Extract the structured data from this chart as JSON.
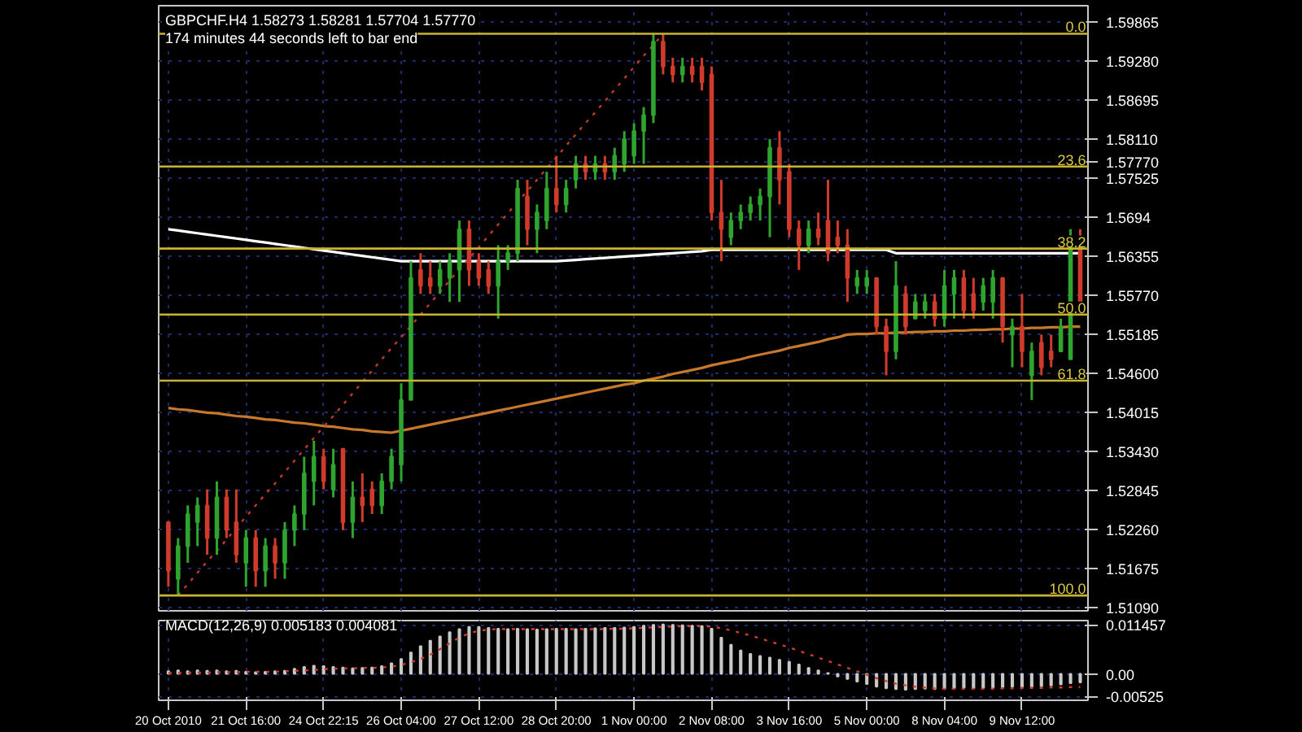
{
  "chart_data": [
    {
      "type": "candlestick",
      "title": "GBPCHF.H4  1.58273 1.58281 1.57704 1.57770",
      "subtitle": "174 minutes 44 seconds left to bar end",
      "categories": [
        null,
        null,
        null,
        null,
        null,
        null,
        null,
        null,
        null,
        null,
        null,
        null,
        null,
        null,
        null,
        null,
        null,
        null,
        null,
        null,
        null,
        null,
        null,
        null,
        null,
        null,
        null,
        null,
        null,
        null,
        null,
        null,
        null,
        null,
        null,
        null,
        null,
        null,
        null,
        null,
        null,
        null,
        null,
        null,
        null,
        null,
        null,
        null,
        null,
        null,
        null,
        null,
        null,
        null,
        null,
        null,
        null,
        null,
        null,
        null,
        null,
        null,
        null,
        null,
        null,
        null,
        null,
        null,
        null,
        null,
        null,
        null,
        null,
        null,
        null,
        null,
        null,
        null,
        null,
        null,
        null,
        null,
        null,
        null,
        null,
        null,
        null,
        null,
        null,
        null,
        null,
        null,
        null,
        null,
        null
      ],
      "ohlc": [
        [
          1.5237,
          1.5237,
          1.514,
          1.5164
        ],
        [
          1.5152,
          1.5213,
          1.5127,
          1.5201
        ],
        [
          1.5201,
          1.5262,
          1.5176,
          1.5249
        ],
        [
          1.5237,
          1.5274,
          1.5201,
          1.5262
        ],
        [
          1.5262,
          1.5286,
          1.5188,
          1.5213
        ],
        [
          1.5213,
          1.5298,
          1.5188,
          1.5274
        ],
        [
          1.5274,
          1.5286,
          1.5213,
          1.5225
        ],
        [
          1.5237,
          1.5286,
          1.5176,
          1.5188
        ],
        [
          1.5176,
          1.5225,
          1.514,
          1.5213
        ],
        [
          1.5213,
          1.5225,
          1.514,
          1.5164
        ],
        [
          1.5164,
          1.5213,
          1.514,
          1.5201
        ],
        [
          1.5201,
          1.5213,
          1.5152,
          1.5176
        ],
        [
          1.5176,
          1.5237,
          1.5152,
          1.5225
        ],
        [
          1.5225,
          1.5262,
          1.5201,
          1.5249
        ],
        [
          1.5249,
          1.5335,
          1.5225,
          1.531
        ],
        [
          1.5298,
          1.5359,
          1.5262,
          1.5335
        ],
        [
          1.5335,
          1.5347,
          1.5286,
          1.5298
        ],
        [
          1.5286,
          1.5347,
          1.5274,
          1.5323
        ],
        [
          1.5347,
          1.5347,
          1.5225,
          1.5237
        ],
        [
          1.5237,
          1.5298,
          1.5213,
          1.5274
        ],
        [
          1.5274,
          1.531,
          1.5237,
          1.5262
        ],
        [
          1.5286,
          1.5298,
          1.5249,
          1.5262
        ],
        [
          1.5262,
          1.531,
          1.5249,
          1.5298
        ],
        [
          1.5298,
          1.5347,
          1.5286,
          1.5335
        ],
        [
          1.5323,
          1.5445,
          1.5298,
          1.542
        ],
        [
          1.542,
          1.5628,
          1.542,
          1.5603
        ],
        [
          1.5615,
          1.564,
          1.5579,
          1.5591
        ],
        [
          1.5603,
          1.5628,
          1.5579,
          1.5591
        ],
        [
          1.5591,
          1.5628,
          1.5579,
          1.5615
        ],
        [
          1.5603,
          1.564,
          1.5567,
          1.5628
        ],
        [
          1.5615,
          1.5689,
          1.5567,
          1.5676
        ],
        [
          1.5676,
          1.5689,
          1.5591,
          1.5615
        ],
        [
          1.5628,
          1.564,
          1.5591,
          1.5603
        ],
        [
          1.5615,
          1.5628,
          1.5579,
          1.5591
        ],
        [
          1.5591,
          1.5652,
          1.5542,
          1.5628
        ],
        [
          1.5628,
          1.5652,
          1.5615,
          1.564
        ],
        [
          1.564,
          1.575,
          1.5628,
          1.5737
        ],
        [
          1.5725,
          1.575,
          1.5652,
          1.5676
        ],
        [
          1.5676,
          1.5713,
          1.564,
          1.5701
        ],
        [
          1.5689,
          1.5762,
          1.5676,
          1.5737
        ],
        [
          1.5737,
          1.5786,
          1.5701,
          1.5713
        ],
        [
          1.5713,
          1.575,
          1.5701,
          1.5737
        ],
        [
          1.575,
          1.5786,
          1.5737,
          1.5774
        ],
        [
          1.5774,
          1.5786,
          1.575,
          1.5762
        ],
        [
          1.5762,
          1.5786,
          1.575,
          1.5774
        ],
        [
          1.5774,
          1.5786,
          1.575,
          1.5762
        ],
        [
          1.5762,
          1.5798,
          1.575,
          1.5786
        ],
        [
          1.5774,
          1.5823,
          1.5762,
          1.5811
        ],
        [
          1.5786,
          1.5835,
          1.5774,
          1.5823
        ],
        [
          1.5823,
          1.5859,
          1.5774,
          1.5847
        ],
        [
          1.5847,
          1.5969,
          1.5835,
          1.5957
        ],
        [
          1.5957,
          1.5969,
          1.5908,
          1.592
        ],
        [
          1.592,
          1.5933,
          1.5896,
          1.5908
        ],
        [
          1.5908,
          1.5933,
          1.5896,
          1.592
        ],
        [
          1.592,
          1.5933,
          1.5896,
          1.5908
        ],
        [
          1.592,
          1.5933,
          1.5884,
          1.5896
        ],
        [
          1.5908,
          1.592,
          1.5689,
          1.5701
        ],
        [
          1.5701,
          1.575,
          1.5628,
          1.5676
        ],
        [
          1.5664,
          1.5701,
          1.5652,
          1.5689
        ],
        [
          1.5689,
          1.5713,
          1.5676,
          1.5701
        ],
        [
          1.5701,
          1.5725,
          1.5689,
          1.5713
        ],
        [
          1.5713,
          1.5737,
          1.5689,
          1.5725
        ],
        [
          1.5725,
          1.5811,
          1.5664,
          1.5798
        ],
        [
          1.5798,
          1.5823,
          1.5713,
          1.575
        ],
        [
          1.5762,
          1.5774,
          1.5664,
          1.5676
        ],
        [
          1.5676,
          1.5689,
          1.5615,
          1.5652
        ],
        [
          1.5652,
          1.5689,
          1.564,
          1.5676
        ],
        [
          1.5676,
          1.5701,
          1.5652,
          1.5664
        ],
        [
          1.5689,
          1.575,
          1.5628,
          1.564
        ],
        [
          1.5664,
          1.5689,
          1.564,
          1.5652
        ],
        [
          1.5652,
          1.5676,
          1.5567,
          1.5603
        ],
        [
          1.5591,
          1.5615,
          1.5579,
          1.5603
        ],
        [
          1.5591,
          1.5615,
          1.5579,
          1.5603
        ],
        [
          1.5603,
          1.5603,
          1.5518,
          1.553
        ],
        [
          1.553,
          1.5542,
          1.5457,
          1.5493
        ],
        [
          1.5493,
          1.5628,
          1.5481,
          1.5591
        ],
        [
          1.5579,
          1.5591,
          1.5518,
          1.553
        ],
        [
          1.5542,
          1.5579,
          1.5542,
          1.5567
        ],
        [
          1.5554,
          1.5579,
          1.5542,
          1.5567
        ],
        [
          1.5567,
          1.5579,
          1.553,
          1.5542
        ],
        [
          1.5542,
          1.5615,
          1.553,
          1.5591
        ],
        [
          1.5579,
          1.5615,
          1.5542,
          1.5603
        ],
        [
          1.5603,
          1.5615,
          1.5542,
          1.5554
        ],
        [
          1.5579,
          1.5603,
          1.5542,
          1.5554
        ],
        [
          1.5567,
          1.5603,
          1.5554,
          1.5591
        ],
        [
          1.5567,
          1.5615,
          1.5542,
          1.5603
        ],
        [
          1.5603,
          1.5603,
          1.5506,
          1.553
        ],
        [
          1.5518,
          1.5542,
          1.5469,
          1.553
        ],
        [
          1.553,
          1.5579,
          1.5469,
          1.5493
        ],
        [
          1.5457,
          1.5506,
          1.542,
          1.5493
        ],
        [
          1.5506,
          1.5518,
          1.5457,
          1.5469
        ],
        [
          1.5493,
          1.5518,
          1.5469,
          1.5481
        ],
        [
          1.5493,
          1.5542,
          1.5493,
          1.553
        ],
        [
          1.5481,
          1.5676,
          1.5481,
          1.5652
        ],
        [
          1.5652,
          1.5676,
          1.5567,
          1.5567
        ]
      ],
      "colors": [
        "#d13b2b",
        "#2fa52f",
        "#2fa52f",
        "#2fa52f",
        "#d13b2b",
        "#2fa52f",
        "#d13b2b",
        "#d13b2b",
        "#2fa52f",
        "#d13b2b",
        "#2fa52f",
        "#d13b2b",
        "#2fa52f",
        "#2fa52f",
        "#2fa52f",
        "#2fa52f",
        "#d13b2b",
        "#2fa52f",
        "#d13b2b",
        "#2fa52f",
        "#d13b2b",
        "#d13b2b",
        "#2fa52f",
        "#2fa52f",
        "#2fa52f",
        "#2fa52f",
        "#d13b2b",
        "#d13b2b",
        "#2fa52f",
        "#2fa52f",
        "#2fa52f",
        "#d13b2b",
        "#d13b2b",
        "#d13b2b",
        "#2fa52f",
        "#2fa52f",
        "#2fa52f",
        "#d13b2b",
        "#2fa52f",
        "#2fa52f",
        "#d13b2b",
        "#2fa52f",
        "#2fa52f",
        "#d13b2b",
        "#2fa52f",
        "#d13b2b",
        "#2fa52f",
        "#2fa52f",
        "#2fa52f",
        "#2fa52f",
        "#2fa52f",
        "#d13b2b",
        "#d13b2b",
        "#2fa52f",
        "#d13b2b",
        "#d13b2b",
        "#d13b2b",
        "#d13b2b",
        "#2fa52f",
        "#2fa52f",
        "#2fa52f",
        "#2fa52f",
        "#2fa52f",
        "#d13b2b",
        "#d13b2b",
        "#d13b2b",
        "#2fa52f",
        "#d13b2b",
        "#d13b2b",
        "#d13b2b",
        "#d13b2b",
        "#2fa52f",
        "#2fa52f",
        "#d13b2b",
        "#d13b2b",
        "#2fa52f",
        "#d13b2b",
        "#2fa52f",
        "#2fa52f",
        "#d13b2b",
        "#2fa52f",
        "#2fa52f",
        "#d13b2b",
        "#d13b2b",
        "#2fa52f",
        "#2fa52f",
        "#d13b2b",
        "#2fa52f",
        "#d13b2b",
        "#2fa52f",
        "#d13b2b",
        "#d13b2b",
        "#2fa52f",
        "#2fa52f",
        "#d13b2b"
      ],
      "series": [
        {
          "type": "line",
          "color": "#ffffff",
          "line_style": "solid",
          "values": [
            1.5676,
            1.5674,
            1.5672,
            1.567,
            1.5668,
            1.5666,
            1.5664,
            1.5662,
            1.566,
            1.5658,
            1.5656,
            1.5654,
            1.5652,
            1.565,
            1.5648,
            1.5646,
            1.5644,
            1.5642,
            1.564,
            1.5638,
            1.5636,
            1.5634,
            1.5632,
            1.563,
            1.5628,
            1.5628,
            1.5628,
            1.5628,
            1.5628,
            1.5628,
            1.5628,
            1.5628,
            1.5628,
            1.5628,
            1.5628,
            1.5628,
            1.5628,
            1.5628,
            1.5628,
            1.5628,
            1.5628,
            1.5629,
            1.563,
            1.5631,
            1.5632,
            1.5633,
            1.5634,
            1.5635,
            1.5636,
            1.5637,
            1.5638,
            1.5639,
            1.564,
            1.5641,
            1.5642,
            1.5643,
            1.5645,
            1.5645,
            1.5645,
            1.5645,
            1.5645,
            1.5645,
            1.5645,
            1.5645,
            1.5645,
            1.5645,
            1.5645,
            1.5645,
            1.5645,
            1.5645,
            1.5645,
            1.5645,
            1.5645,
            1.5645,
            1.5645,
            1.564,
            1.564,
            1.564,
            1.564,
            1.564,
            1.564,
            1.564,
            1.564,
            1.564,
            1.564,
            1.564,
            1.564,
            1.564,
            1.564,
            1.564,
            1.564,
            1.564,
            1.564,
            1.564,
            1.564
          ]
        },
        {
          "type": "line",
          "color": "#c8782a",
          "line_style": "solid",
          "values": [
            1.5408,
            1.5406,
            1.5405,
            1.5403,
            1.5401,
            1.54,
            1.5398,
            1.5396,
            1.5395,
            1.5393,
            1.5391,
            1.539,
            1.5388,
            1.5386,
            1.5385,
            1.5383,
            1.5381,
            1.538,
            1.5378,
            1.5376,
            1.5375,
            1.5373,
            1.5372,
            1.5371,
            1.5374,
            1.5377,
            1.538,
            1.5383,
            1.5386,
            1.5389,
            1.5392,
            1.5395,
            1.5398,
            1.5401,
            1.5404,
            1.5407,
            1.541,
            1.5413,
            1.5416,
            1.5419,
            1.5422,
            1.5425,
            1.5428,
            1.5431,
            1.5434,
            1.5437,
            1.544,
            1.5443,
            1.5445,
            1.5449,
            1.5452,
            1.5455,
            1.5459,
            1.5462,
            1.5465,
            1.5468,
            1.5472,
            1.5475,
            1.5478,
            1.5481,
            1.5485,
            1.5488,
            1.5491,
            1.5494,
            1.5498,
            1.5501,
            1.5504,
            1.5507,
            1.5511,
            1.5514,
            1.5518,
            1.5519,
            1.5519,
            1.552,
            1.552,
            1.5521,
            1.5521,
            1.5522,
            1.5522,
            1.5523,
            1.5523,
            1.5524,
            1.5524,
            1.5525,
            1.5525,
            1.5526,
            1.5526,
            1.5527,
            1.5527,
            1.5528,
            1.5528,
            1.5529,
            1.5529,
            1.553,
            1.553
          ]
        },
        {
          "type": "line",
          "color": "#c0392b",
          "line_style": "dotted",
          "values": [
            null,
            1.5127,
            1.5144,
            1.5161,
            1.5178,
            1.5194,
            1.5211,
            1.5228,
            1.5245,
            1.5262,
            1.5279,
            1.5295,
            1.5312,
            1.5329,
            1.5346,
            1.5363,
            1.538,
            1.5396,
            1.5413,
            1.543,
            1.5447,
            1.5464,
            1.5481,
            1.5498,
            1.5514,
            1.5531,
            1.5548,
            1.5565,
            1.5582,
            1.5599,
            1.5616,
            1.5632,
            1.5649,
            1.5666,
            1.5683,
            1.57,
            1.5717,
            1.5733,
            1.575,
            1.5767,
            1.5784,
            1.5801,
            1.5818,
            1.5835,
            1.5851,
            1.5868,
            1.5885,
            1.5902,
            1.5919,
            1.5936,
            1.5952,
            1.5969,
            null,
            null,
            null,
            null,
            null,
            null,
            null,
            null,
            null,
            null,
            null,
            null,
            null,
            null,
            null,
            null,
            null,
            null,
            null,
            null,
            null,
            null,
            null,
            null,
            null,
            null,
            null,
            null,
            null,
            null,
            null,
            null,
            null,
            null,
            null,
            null,
            null,
            null,
            null,
            null,
            null,
            null,
            null
          ]
        }
      ],
      "ref_lines": [
        {
          "axis": "y",
          "value": 1.5969,
          "color": "#c8b432"
        },
        {
          "axis": "y",
          "value": 1.577,
          "color": "#c8b432"
        },
        {
          "axis": "y",
          "value": 1.5647,
          "color": "#c8b432"
        },
        {
          "axis": "y",
          "value": 1.5548,
          "color": "#c8b432"
        },
        {
          "axis": "y",
          "value": 1.5449,
          "color": "#c8b432"
        },
        {
          "axis": "y",
          "value": 1.5127,
          "color": "#c8b432"
        }
      ],
      "annotations": [
        {
          "text": "0.0",
          "y": 1.5969
        },
        {
          "text": "23.6",
          "y": 1.577
        },
        {
          "text": "38.2",
          "y": 1.5647
        },
        {
          "text": "50.0",
          "y": 1.5548
        },
        {
          "text": "61.8",
          "y": 1.5449
        },
        {
          "text": "100.0",
          "y": 1.5127
        }
      ],
      "ylim": [
        1.5104,
        1.6011
      ],
      "yticks": [
        1.59865,
        {
          "value": 1.5928,
          "label": "1.59280"
        },
        1.58695,
        {
          "value": 1.5811,
          "label": "1.58110"
        },
        {
          "value": 1.5777,
          "label": "1.57770"
        },
        1.57525,
        1.5694,
        1.56355,
        {
          "value": 1.5577,
          "label": "1.55770"
        },
        1.55185,
        {
          "value": 1.546,
          "label": "1.54600"
        },
        1.54015,
        {
          "value": 1.5343,
          "label": "1.53430"
        },
        1.52845,
        {
          "value": 1.5226,
          "label": "1.52260"
        },
        1.51675,
        {
          "value": 1.5109,
          "label": "1.51090"
        }
      ],
      "grid": true,
      "tick_labels": "y"
    },
    {
      "type": "bar",
      "title": "MACD(12,26,9) 0.005183 0.004081",
      "categories": [
        "20 Oct 2010",
        null,
        null,
        null,
        null,
        null,
        null,
        null,
        "21 Oct 16:00",
        null,
        null,
        null,
        null,
        null,
        null,
        null,
        "24 Oct 22:15",
        null,
        null,
        null,
        null,
        null,
        null,
        null,
        "26 Oct 04:00",
        null,
        null,
        null,
        null,
        null,
        null,
        null,
        "27 Oct 12:00",
        null,
        null,
        null,
        null,
        null,
        null,
        null,
        "28 Oct 20:00",
        null,
        null,
        null,
        null,
        null,
        null,
        null,
        "1 Nov 00:00",
        null,
        null,
        null,
        null,
        null,
        null,
        null,
        "2 Nov 08:00",
        null,
        null,
        null,
        null,
        null,
        null,
        null,
        "3 Nov 16:00",
        null,
        null,
        null,
        null,
        null,
        null,
        null,
        "5 Nov 00:00",
        null,
        null,
        null,
        null,
        null,
        null,
        null,
        "8 Nov 04:00",
        null,
        null,
        null,
        null,
        null,
        null,
        null,
        "9 Nov 12:00",
        null,
        null,
        null,
        null,
        null,
        null
      ],
      "series": [
        {
          "type": "bar",
          "color": "#c8c8c8",
          "values": [
            0.0006,
            0.0008,
            0.0006,
            0.0008,
            0.0007,
            0.0008,
            0.0006,
            0.0007,
            0.0005,
            0.0004,
            0.0005,
            0.0006,
            0.0007,
            0.0012,
            0.0016,
            0.0019,
            0.0018,
            0.0016,
            0.0015,
            0.0013,
            0.0014,
            0.0015,
            0.0018,
            0.0025,
            0.0035,
            0.005,
            0.0065,
            0.0078,
            0.0088,
            0.0098,
            0.0105,
            0.011,
            0.011,
            0.0108,
            0.0106,
            0.0105,
            0.0106,
            0.0105,
            0.0104,
            0.0105,
            0.0106,
            0.0106,
            0.0105,
            0.0106,
            0.0107,
            0.0108,
            0.0108,
            0.0109,
            0.011,
            0.0113,
            0.0115,
            0.0116,
            0.0115,
            0.0114,
            0.0113,
            0.0112,
            0.0106,
            0.0085,
            0.0068,
            0.0055,
            0.0047,
            0.0042,
            0.0038,
            0.0033,
            0.0028,
            0.0022,
            0.0014,
            0.0008,
            0.0002,
            -0.0006,
            -0.0012,
            -0.0018,
            -0.0024,
            -0.003,
            -0.0034,
            -0.0036,
            -0.0037,
            -0.0036,
            -0.0035,
            -0.0036,
            -0.0035,
            -0.0034,
            -0.0033,
            -0.0034,
            -0.0033,
            -0.0032,
            -0.0031,
            -0.003,
            -0.0031,
            -0.003,
            -0.0029,
            -0.0027,
            -0.0025,
            -0.0022,
            -0.002
          ]
        },
        {
          "type": "line",
          "color": "#d13b2b",
          "line_style": "dotted",
          "values": [
            0.0002,
            0.0002,
            0.0003,
            0.0003,
            0.0003,
            0.0004,
            0.0004,
            0.0004,
            0.0005,
            0.0005,
            0.0005,
            0.0005,
            0.0006,
            0.0007,
            0.0008,
            0.0009,
            0.0011,
            0.0012,
            0.0013,
            0.0013,
            0.0014,
            0.0014,
            0.0015,
            0.0017,
            0.0021,
            0.0027,
            0.0035,
            0.0045,
            0.0058,
            0.0072,
            0.0085,
            0.0095,
            0.0101,
            0.0104,
            0.0105,
            0.0105,
            0.0105,
            0.0105,
            0.0105,
            0.0105,
            0.0105,
            0.0105,
            0.0105,
            0.0105,
            0.0105,
            0.0105,
            0.0106,
            0.0106,
            0.0107,
            0.0108,
            0.0109,
            0.011,
            0.0111,
            0.0112,
            0.0112,
            0.0112,
            0.0111,
            0.0107,
            0.0102,
            0.0096,
            0.009,
            0.0083,
            0.0076,
            0.0069,
            0.0062,
            0.0054,
            0.0046,
            0.0038,
            0.003,
            0.0022,
            0.0014,
            0.0006,
            -0.0002,
            -0.001,
            -0.0017,
            -0.0023,
            -0.0027,
            -0.003,
            -0.0032,
            -0.0034,
            -0.0035,
            -0.0035,
            -0.0035,
            -0.0035,
            -0.0035,
            -0.0035,
            -0.0034,
            -0.0034,
            -0.0033,
            -0.0033,
            -0.0033,
            -0.0032,
            -0.0032,
            -0.0031,
            -0.0031
          ]
        }
      ],
      "ylim": [
        -0.0062,
        0.0125
      ],
      "yticks": [
        {
          "value": 0.011457,
          "label": "0.011457"
        },
        {
          "value": 0,
          "label": "0.00"
        },
        {
          "value": -0.00525,
          "label": "-0.00525"
        }
      ],
      "grid": true
    }
  ]
}
